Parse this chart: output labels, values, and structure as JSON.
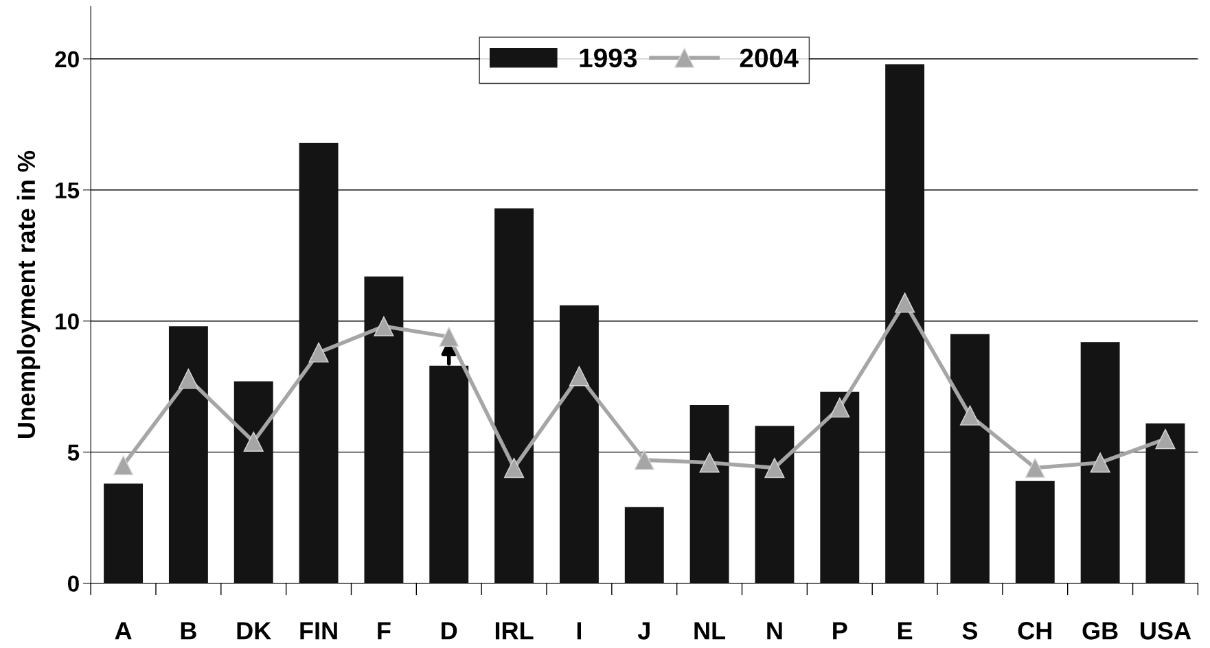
{
  "chart_data": {
    "type": "bar",
    "ylabel": "Unemployment rate in %",
    "categories": [
      "A",
      "B",
      "DK",
      "FIN",
      "F",
      "D",
      "IRL",
      "I",
      "J",
      "NL",
      "N",
      "P",
      "E",
      "S",
      "CH",
      "GB",
      "USA"
    ],
    "series": [
      {
        "name": "1993",
        "color": "#141414",
        "values": [
          3.8,
          9.8,
          7.7,
          16.8,
          11.7,
          8.3,
          14.3,
          10.6,
          2.9,
          6.8,
          6.0,
          7.3,
          19.8,
          9.5,
          3.9,
          9.2,
          6.1
        ]
      },
      {
        "name": "2004",
        "type": "line",
        "color": "#a6a6a6",
        "marker": "triangle",
        "line_style": "solid",
        "values": [
          4.5,
          7.8,
          5.4,
          8.8,
          9.8,
          9.4,
          4.4,
          7.9,
          4.7,
          4.6,
          4.4,
          6.7,
          10.7,
          6.4,
          4.4,
          4.6,
          5.5
        ]
      }
    ],
    "ylim": [
      0,
      22
    ],
    "yticks": [
      0,
      5,
      10,
      15,
      20
    ],
    "grid": "y",
    "legend": "top"
  }
}
